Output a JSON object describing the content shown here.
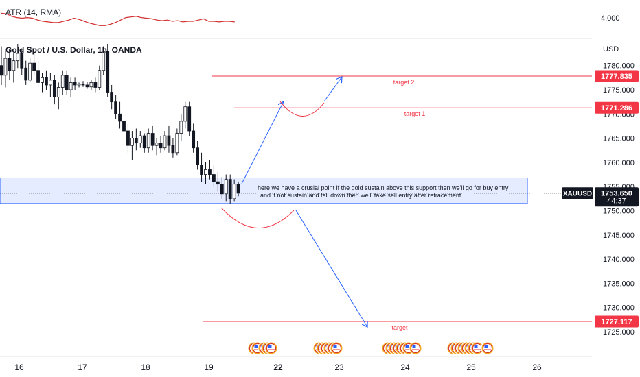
{
  "indicator": {
    "label": "ATR (14, RMA)",
    "scale_value": "4.000"
  },
  "symbol_title": "Gold Spot / U.S. Dollar, 1h, OANDA",
  "currency_label": "USD",
  "chart_data": {
    "type": "candlestick",
    "title": "Gold Spot / U.S. Dollar, 1h, OANDA",
    "ylabel": "USD",
    "ylim": [
      1722.5,
      1787.5
    ],
    "y_ticks": [
      "1780.000",
      "1775.000",
      "1770.000",
      "1765.000",
      "1760.000",
      "1755.000",
      "1750.000",
      "1745.000",
      "1740.000",
      "1735.000",
      "1730.000",
      "1725.000"
    ],
    "y_tick_values": [
      1780,
      1775,
      1770,
      1765,
      1760,
      1755,
      1750,
      1745,
      1740,
      1735,
      1730,
      1725
    ],
    "x_ticks": [
      "16",
      "17",
      "18",
      "19",
      "22",
      "23",
      "24",
      "25",
      "26"
    ],
    "x_ticks_bold": [
      "22"
    ],
    "price_labels": [
      {
        "text": "1777.835",
        "value": 1777.835,
        "color": "#f23645"
      },
      {
        "text": "1771.286",
        "value": 1771.286,
        "color": "#f23645"
      },
      {
        "text": "1753.650",
        "value": 1753.65,
        "color": "#131722",
        "countdown": "44:37"
      },
      {
        "text": "1727.117",
        "value": 1727.117,
        "color": "#f23645"
      }
    ],
    "symbol_tag": "XAUUSD",
    "horizontal_levels": [
      {
        "name": "target 2",
        "value": 1777.835
      },
      {
        "name": "target 1",
        "value": 1771.286
      },
      {
        "name": "target",
        "value": 1727.117
      }
    ],
    "support_zone": [
      1751.5,
      1756.8
    ],
    "candles": [
      [
        1780.0,
        1784.0,
        1776.0,
        1778.0
      ],
      [
        1778.0,
        1783.0,
        1775.5,
        1781.5
      ],
      [
        1781.5,
        1783.5,
        1777.0,
        1779.0
      ],
      [
        1779.0,
        1782.5,
        1776.5,
        1781.0
      ],
      [
        1781.0,
        1784.5,
        1779.5,
        1782.5
      ],
      [
        1782.5,
        1783.5,
        1778.0,
        1779.5
      ],
      [
        1779.5,
        1781.0,
        1776.0,
        1777.0
      ],
      [
        1777.0,
        1781.5,
        1776.5,
        1780.5
      ],
      [
        1780.5,
        1783.0,
        1778.0,
        1779.0
      ],
      [
        1779.0,
        1781.0,
        1775.5,
        1776.5
      ],
      [
        1776.5,
        1778.5,
        1774.5,
        1777.5
      ],
      [
        1777.5,
        1779.0,
        1775.0,
        1776.0
      ],
      [
        1776.0,
        1778.5,
        1773.5,
        1777.0
      ],
      [
        1777.0,
        1778.0,
        1772.0,
        1773.5
      ],
      [
        1773.5,
        1776.5,
        1771.0,
        1775.5
      ],
      [
        1775.5,
        1779.0,
        1774.0,
        1778.0
      ],
      [
        1778.0,
        1779.0,
        1774.0,
        1775.0
      ],
      [
        1775.0,
        1777.5,
        1773.5,
        1776.5
      ],
      [
        1776.5,
        1777.5,
        1775.0,
        1776.0
      ],
      [
        1776.0,
        1776.5,
        1775.5,
        1776.2
      ],
      [
        1776.2,
        1776.8,
        1775.6,
        1776.0
      ],
      [
        1776.0,
        1776.6,
        1775.2,
        1775.6
      ],
      [
        1775.6,
        1777.0,
        1775.0,
        1776.5
      ],
      [
        1776.5,
        1777.5,
        1774.5,
        1775.5
      ],
      [
        1775.5,
        1780.0,
        1775.0,
        1779.0
      ],
      [
        1779.0,
        1784.0,
        1778.0,
        1783.0
      ],
      [
        1783.0,
        1784.5,
        1773.5,
        1774.5
      ],
      [
        1774.5,
        1776.0,
        1771.0,
        1772.5
      ],
      [
        1772.5,
        1774.0,
        1769.0,
        1770.0
      ],
      [
        1770.0,
        1772.5,
        1767.0,
        1768.5
      ],
      [
        1768.5,
        1771.0,
        1765.5,
        1766.5
      ],
      [
        1766.5,
        1768.0,
        1762.0,
        1763.5
      ],
      [
        1763.5,
        1766.5,
        1760.5,
        1765.0
      ],
      [
        1765.0,
        1767.0,
        1762.5,
        1764.0
      ],
      [
        1764.0,
        1766.5,
        1763.0,
        1765.5
      ],
      [
        1765.5,
        1766.0,
        1762.0,
        1763.0
      ],
      [
        1763.0,
        1767.0,
        1762.0,
        1766.0
      ],
      [
        1766.0,
        1767.5,
        1762.5,
        1763.5
      ],
      [
        1763.5,
        1765.0,
        1761.5,
        1764.0
      ],
      [
        1764.0,
        1765.5,
        1762.0,
        1763.0
      ],
      [
        1763.0,
        1766.5,
        1762.5,
        1765.5
      ],
      [
        1765.5,
        1767.5,
        1762.0,
        1763.5
      ],
      [
        1763.5,
        1765.0,
        1761.0,
        1762.0
      ],
      [
        1762.0,
        1767.0,
        1761.5,
        1766.0
      ],
      [
        1766.0,
        1770.0,
        1764.5,
        1768.5
      ],
      [
        1768.5,
        1772.5,
        1767.0,
        1771.5
      ],
      [
        1771.5,
        1772.5,
        1765.5,
        1766.5
      ],
      [
        1766.5,
        1768.0,
        1762.0,
        1763.0
      ],
      [
        1763.0,
        1764.5,
        1758.5,
        1759.5
      ],
      [
        1759.5,
        1762.0,
        1756.0,
        1757.5
      ],
      [
        1757.5,
        1760.0,
        1755.5,
        1758.5
      ],
      [
        1758.5,
        1760.5,
        1756.5,
        1757.5
      ],
      [
        1757.5,
        1759.5,
        1755.0,
        1756.0
      ],
      [
        1756.0,
        1758.0,
        1754.0,
        1755.5
      ],
      [
        1755.5,
        1757.0,
        1752.5,
        1753.5
      ],
      [
        1753.5,
        1757.5,
        1752.0,
        1756.5
      ],
      [
        1756.5,
        1757.5,
        1751.5,
        1752.5
      ],
      [
        1752.5,
        1756.5,
        1752.0,
        1755.5
      ],
      [
        1755.5,
        1756.0,
        1753.0,
        1753.65
      ]
    ],
    "atr_series": [
      3.93,
      3.92,
      3.88,
      3.86,
      3.85,
      3.86,
      3.85,
      3.82,
      3.8,
      3.79,
      3.78,
      3.78,
      3.8,
      3.82,
      3.85,
      3.83,
      3.8,
      3.77,
      3.75,
      3.73,
      3.73,
      3.75,
      3.78,
      3.82,
      3.86,
      3.87,
      3.88,
      3.86,
      3.85,
      3.84,
      3.82,
      3.81,
      3.82,
      3.8,
      3.81,
      3.79,
      3.8,
      3.8,
      3.82,
      3.84,
      3.8,
      3.8,
      3.79,
      3.8,
      3.8,
      3.79
    ],
    "annotation_text": [
      "here  we have a crusial point if the gold sustain above this support then we'll go for buy entry",
      "and if not sustain and fall down then we'll take sell entry after retracement"
    ],
    "event_icon_groups": [
      [
        360,
        365,
        375,
        380,
        385
      ],
      [
        455,
        460,
        465,
        470,
        475,
        480
      ],
      [
        555,
        560,
        565,
        570,
        575,
        580,
        585,
        595
      ],
      [
        650,
        655,
        660,
        665,
        670,
        675,
        680,
        685
      ],
      [
        700
      ]
    ]
  }
}
